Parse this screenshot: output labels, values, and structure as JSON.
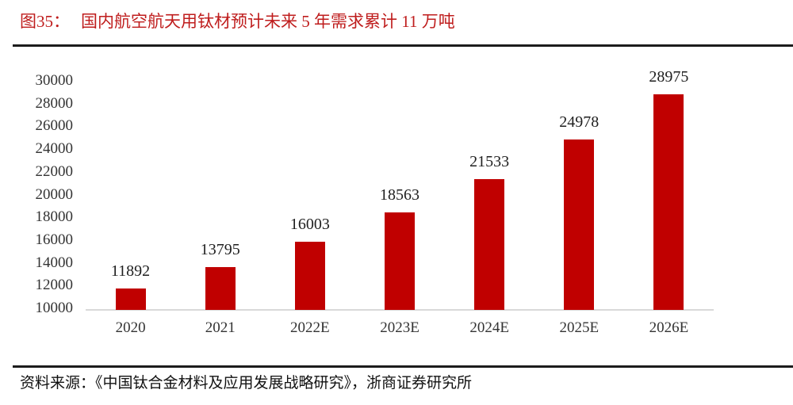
{
  "figure": {
    "label": "图35：",
    "title": "国内航空航天用钛材预计未来 5 年需求累计 11 万吨",
    "source": "资料来源：《中国钛合金材料及应用发展战略研究》，浙商证券研究所"
  },
  "colors": {
    "title_red": "#BF1D1D",
    "bar_red": "#C00000",
    "axis_line_gray": "#D9D9D9",
    "rule_black": "#1C1C1C",
    "tick_text": "#333333",
    "value_text": "#1F1F1F"
  },
  "chart_data": {
    "type": "bar",
    "title": "国内航空航天用钛材预计未来 5 年需求累计 11 万吨",
    "categories": [
      "2020",
      "2021",
      "2022E",
      "2023E",
      "2024E",
      "2025E",
      "2026E"
    ],
    "values": [
      11892,
      13795,
      16003,
      18563,
      21533,
      24978,
      28975
    ],
    "xlabel": "",
    "ylabel": "",
    "ylim": [
      10000,
      30000
    ],
    "yticks": [
      30000,
      28000,
      26000,
      24000,
      22000,
      20000,
      18000,
      16000,
      14000,
      12000,
      10000
    ],
    "grid": false,
    "legend": false,
    "data_labels": true,
    "bar_color": "#C00000"
  }
}
